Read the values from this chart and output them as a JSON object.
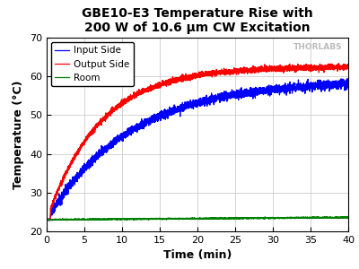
{
  "title": "GBE10-E3 Temperature Rise with\n200 W of 10.6 μm CW Excitation",
  "xlabel": "Time (min)",
  "ylabel": "Temperature (°C)",
  "xlim": [
    0,
    40
  ],
  "ylim": [
    20,
    70
  ],
  "xticks": [
    0,
    5,
    10,
    15,
    20,
    25,
    30,
    35,
    40
  ],
  "yticks": [
    20,
    30,
    40,
    50,
    60,
    70
  ],
  "input_color": "#0000FF",
  "output_color": "#FF0000",
  "room_color": "#008000",
  "watermark": "THORLABS",
  "watermark_color": "#BBBBBB",
  "legend_labels": [
    "Input Side",
    "Output Side",
    "Room"
  ],
  "title_fontsize": 10,
  "axis_label_fontsize": 9,
  "tick_fontsize": 8,
  "legend_fontsize": 7.5,
  "background_color": "#FFFFFF",
  "grid_color": "#CCCCCC",
  "T_out_ss": 62.5,
  "T_in_ss": 59.0,
  "tau_out": 7.0,
  "tau_in": 11.0,
  "T_start": 23.0,
  "T_room": 23.0
}
